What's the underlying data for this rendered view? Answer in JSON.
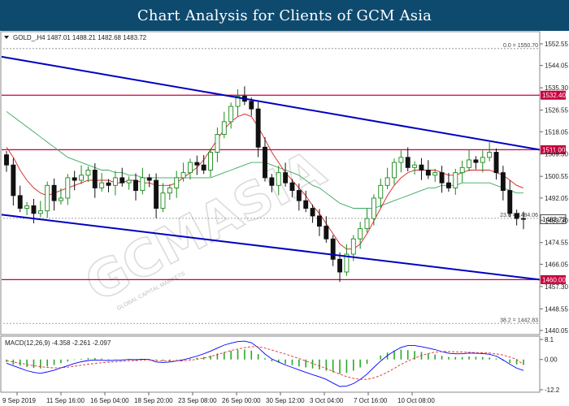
{
  "banner": {
    "title": "Chart Analysis for Clients of GCM Asia"
  },
  "colors": {
    "bull": "#1a8a1a",
    "bear": "#111111",
    "channel": "#0000c0",
    "level": "#c8003c",
    "ma_fast": "#d92020",
    "ma_slow": "#3aa860",
    "fib": "#888888",
    "macd_line": "#0000ff",
    "macd_signal": "#e03030",
    "macd_hist": "#2aa82a",
    "banner_bg": "#0e4a6e"
  },
  "chart_data": [
    {
      "type": "candlestick",
      "symbol_header": "GOLD_,H4  1487.01 1488.21 1482.68 1483.72",
      "ylim": [
        1440.05,
        1552.55
      ],
      "y_ticks": [
        "1552.55",
        "1544.05",
        "1535.30",
        "1526.55",
        "1518.05",
        "1509.30",
        "1500.55",
        "1492.05",
        "1483.30",
        "1474.55",
        "1466.05",
        "1457.30",
        "1448.55",
        "1440.05"
      ],
      "x_ticks": [
        "9 Sep 2019",
        "11 Sep 16:00",
        "16 Sep 04:00",
        "18 Sep 20:00",
        "23 Sep 08:00",
        "26 Sep 00:00",
        "30 Sep 12:00",
        "3 Oct 04:00",
        "7 Oct 16:00",
        "10 Oct 08:00"
      ],
      "price_labels": [
        {
          "value": "1532.40",
          "kind": "level"
        },
        {
          "value": "1511.00",
          "kind": "level"
        },
        {
          "value": "1460.00",
          "kind": "level"
        },
        {
          "value": "1483.72",
          "kind": "current"
        }
      ],
      "fibonacci": [
        {
          "label": "0.0 = 1550.70",
          "value": 1550.7
        },
        {
          "label": "23.6 = 1484.06",
          "value": 1484.06
        },
        {
          "label": "38.2 = 1442.83",
          "value": 1442.83
        }
      ],
      "channel_lines": [
        {
          "name": "upper",
          "from": 1547.5,
          "to": 1511.0
        },
        {
          "name": "lower",
          "from": 1485.5,
          "to": 1460.0
        }
      ],
      "closes": [
        1505,
        1493,
        1488,
        1489,
        1486,
        1487,
        1497,
        1491,
        1492,
        1500,
        1499,
        1501,
        1503,
        1496,
        1498,
        1497,
        1500,
        1498,
        1499,
        1495,
        1500,
        1499,
        1488,
        1494,
        1496,
        1500,
        1502,
        1506,
        1505,
        1503,
        1510,
        1517,
        1522,
        1528,
        1532,
        1530,
        1527,
        1512,
        1500,
        1497,
        1502,
        1498,
        1495,
        1491,
        1488,
        1485,
        1481,
        1476,
        1468,
        1463,
        1470,
        1476,
        1480,
        1484,
        1492,
        1497,
        1500,
        1506,
        1508,
        1504,
        1505,
        1503,
        1501,
        1502,
        1498,
        1496,
        1502,
        1504,
        1507,
        1506,
        1508,
        1510,
        1502,
        1495,
        1486,
        1484,
        1483.72
      ],
      "ma_fast": [
        1512,
        1508,
        1503,
        1499,
        1496,
        1494,
        1493,
        1494,
        1495,
        1496,
        1497,
        1498,
        1499,
        1499,
        1499,
        1499,
        1498,
        1498,
        1499,
        1499,
        1498,
        1498,
        1497,
        1497,
        1497,
        1498,
        1500,
        1502,
        1504,
        1507,
        1511,
        1515,
        1519,
        1522,
        1524,
        1525,
        1524,
        1520,
        1515,
        1510,
        1506,
        1502,
        1499,
        1496,
        1493,
        1489,
        1486,
        1482,
        1478,
        1474,
        1472,
        1472,
        1474,
        1478,
        1483,
        1488,
        1493,
        1497,
        1500,
        1502,
        1503,
        1503,
        1503,
        1503,
        1502,
        1501,
        1501,
        1502,
        1503,
        1503,
        1503,
        1503,
        1502,
        1501,
        1499,
        1497,
        1496
      ],
      "ma_slow": [
        1526,
        1524,
        1522,
        1520,
        1518,
        1516,
        1514,
        1512,
        1510,
        1508,
        1507,
        1506,
        1505,
        1504,
        1503,
        1503,
        1502,
        1502,
        1501,
        1501,
        1500,
        1500,
        1500,
        1500,
        1500,
        1500,
        1500,
        1500,
        1500,
        1500,
        1500,
        1501,
        1502,
        1503,
        1504,
        1505,
        1506,
        1506,
        1506,
        1505,
        1504,
        1503,
        1502,
        1501,
        1499,
        1497,
        1496,
        1494,
        1492,
        1490,
        1489,
        1488,
        1488,
        1488,
        1488,
        1489,
        1490,
        1491,
        1492,
        1493,
        1494,
        1495,
        1496,
        1496,
        1497,
        1497,
        1497,
        1498,
        1498,
        1498,
        1498,
        1498,
        1497,
        1496,
        1495,
        1494,
        1494
      ]
    },
    {
      "type": "macd",
      "label": "MACD(12,26,9) -4.358 -2.261 -2.097",
      "ylim": [
        -12.2,
        8.1
      ],
      "y_ticks": [
        "8.1",
        "0.00",
        "-12.2"
      ],
      "hist": [
        -1.0,
        -2.0,
        -2.5,
        -3.0,
        -3.4,
        -3.6,
        -2.8,
        -2.2,
        -1.5,
        -0.8,
        -0.2,
        0.3,
        0.6,
        0.6,
        0.4,
        0.2,
        0.1,
        0.1,
        0.2,
        0.1,
        0.2,
        0.1,
        -0.5,
        -0.6,
        -0.6,
        -0.3,
        0.0,
        0.3,
        0.7,
        1.0,
        1.6,
        2.4,
        3.0,
        3.5,
        3.9,
        4.0,
        3.6,
        2.2,
        0.5,
        -0.7,
        -1.2,
        -1.8,
        -2.3,
        -2.8,
        -3.2,
        -3.6,
        -4.0,
        -4.5,
        -5.2,
        -5.8,
        -5.4,
        -4.5,
        -3.2,
        -1.8,
        0.0,
        1.6,
        2.8,
        3.6,
        4.0,
        3.8,
        3.4,
        3.0,
        2.4,
        2.0,
        1.5,
        1.0,
        1.0,
        1.0,
        1.2,
        1.1,
        1.0,
        0.8,
        0.4,
        -0.5,
        -1.4,
        -2.0,
        -2.1
      ],
      "macd": [
        -1.5,
        -2.5,
        -3.5,
        -4.5,
        -5.2,
        -5.6,
        -5.0,
        -4.3,
        -3.4,
        -2.5,
        -1.6,
        -0.9,
        -0.4,
        -0.2,
        -0.3,
        -0.4,
        -0.3,
        -0.2,
        0.0,
        -0.1,
        0.1,
        0.0,
        -1.0,
        -1.2,
        -1.0,
        -0.6,
        -0.1,
        0.6,
        1.4,
        2.3,
        3.4,
        4.6,
        5.8,
        6.6,
        7.2,
        7.4,
        6.8,
        4.8,
        2.2,
        0.2,
        -1.0,
        -2.2,
        -3.2,
        -4.2,
        -5.2,
        -6.1,
        -7.0,
        -8.0,
        -9.5,
        -10.9,
        -10.7,
        -9.7,
        -8.0,
        -5.9,
        -3.2,
        -0.6,
        1.6,
        3.4,
        4.9,
        5.6,
        5.6,
        5.2,
        4.6,
        4.0,
        3.2,
        2.5,
        2.3,
        2.3,
        2.6,
        2.5,
        2.4,
        2.1,
        1.4,
        -0.2,
        -1.9,
        -3.5,
        -4.4
      ],
      "signal": [
        -0.5,
        -1.0,
        -1.5,
        -2.0,
        -2.5,
        -2.9,
        -3.2,
        -3.4,
        -3.3,
        -3.1,
        -2.7,
        -2.3,
        -1.9,
        -1.6,
        -1.3,
        -1.1,
        -0.9,
        -0.7,
        -0.5,
        -0.4,
        -0.2,
        -0.2,
        -0.4,
        -0.5,
        -0.6,
        -0.6,
        -0.5,
        -0.3,
        0.1,
        0.6,
        1.2,
        2.0,
        2.8,
        3.6,
        4.2,
        4.8,
        5.2,
        5.2,
        4.6,
        3.8,
        3.0,
        2.2,
        1.3,
        0.4,
        -0.6,
        -1.6,
        -2.6,
        -3.6,
        -4.8,
        -5.9,
        -6.9,
        -7.6,
        -8.0,
        -8.0,
        -7.4,
        -6.4,
        -5.1,
        -3.6,
        -2.0,
        -0.6,
        0.6,
        1.6,
        2.4,
        3.0,
        3.2,
        3.2,
        3.1,
        3.0,
        2.9,
        2.8,
        2.7,
        2.6,
        2.3,
        1.8,
        1.0,
        0.0,
        -2.1
      ]
    }
  ],
  "watermark": {
    "brand": "GCMASIA",
    "tag": "GLOBAL CAPITAL MARKETS"
  }
}
